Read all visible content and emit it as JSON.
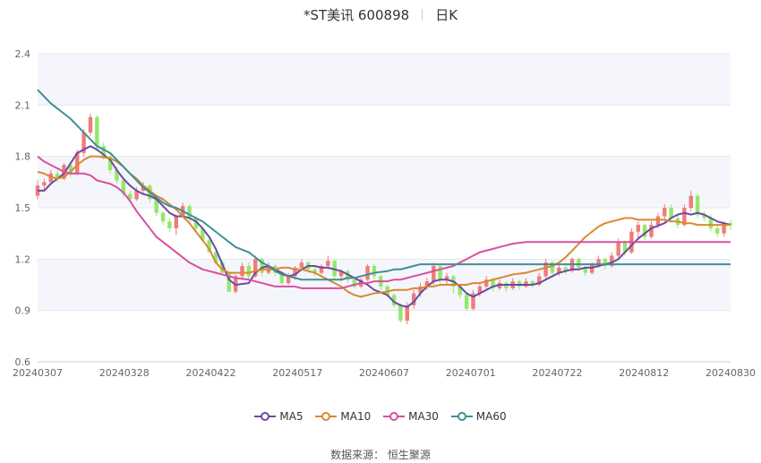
{
  "header": {
    "title": "*ST美讯 600898",
    "period": "日K"
  },
  "source": "数据来源： 恒生聚源",
  "chart_data": {
    "type": "candlestick",
    "x_ticks": [
      "20240307",
      "20240328",
      "20240422",
      "20240517",
      "20240607",
      "20240701",
      "20240722",
      "20240812",
      "20240830"
    ],
    "y_ticks": [
      "2.4",
      "2.1",
      "1.8",
      "1.5",
      "1.2",
      "0.9",
      "0.6"
    ],
    "ylim": [
      0.6,
      2.4
    ],
    "colors": {
      "up": "#f07b7b",
      "down": "#93e86b",
      "grid": "#e8e8e8",
      "band": "#f5f6fb"
    },
    "legend_placement": "bottom-center",
    "candles": [
      [
        1.57,
        1.63,
        1.66,
        1.55
      ],
      [
        1.63,
        1.65,
        1.67,
        1.6
      ],
      [
        1.65,
        1.7,
        1.72,
        1.64
      ],
      [
        1.7,
        1.67,
        1.72,
        1.65
      ],
      [
        1.67,
        1.75,
        1.76,
        1.66
      ],
      [
        1.75,
        1.7,
        1.76,
        1.68
      ],
      [
        1.7,
        1.82,
        1.84,
        1.69
      ],
      [
        1.82,
        1.94,
        1.96,
        1.8
      ],
      [
        1.94,
        2.03,
        2.05,
        1.92
      ],
      [
        2.03,
        1.86,
        2.04,
        1.83
      ],
      [
        1.86,
        1.8,
        1.88,
        1.78
      ],
      [
        1.8,
        1.72,
        1.82,
        1.7
      ],
      [
        1.72,
        1.66,
        1.74,
        1.64
      ],
      [
        1.66,
        1.58,
        1.68,
        1.56
      ],
      [
        1.58,
        1.55,
        1.6,
        1.53
      ],
      [
        1.55,
        1.6,
        1.62,
        1.54
      ],
      [
        1.6,
        1.63,
        1.65,
        1.58
      ],
      [
        1.63,
        1.55,
        1.64,
        1.53
      ],
      [
        1.55,
        1.47,
        1.56,
        1.45
      ],
      [
        1.47,
        1.42,
        1.48,
        1.4
      ],
      [
        1.42,
        1.38,
        1.44,
        1.36
      ],
      [
        1.38,
        1.45,
        1.46,
        1.34
      ],
      [
        1.45,
        1.51,
        1.53,
        1.44
      ],
      [
        1.51,
        1.44,
        1.52,
        1.42
      ],
      [
        1.44,
        1.38,
        1.45,
        1.36
      ],
      [
        1.38,
        1.31,
        1.39,
        1.3
      ],
      [
        1.31,
        1.24,
        1.32,
        1.24
      ],
      [
        1.24,
        1.18,
        1.25,
        1.18
      ],
      [
        1.18,
        1.12,
        1.19,
        1.12
      ],
      [
        1.12,
        1.01,
        1.13,
        1.01
      ],
      [
        1.01,
        1.1,
        1.11,
        1.0
      ],
      [
        1.1,
        1.16,
        1.18,
        1.08
      ],
      [
        1.16,
        1.1,
        1.18,
        1.08
      ],
      [
        1.1,
        1.2,
        1.22,
        1.09
      ],
      [
        1.2,
        1.12,
        1.21,
        1.1
      ],
      [
        1.12,
        1.16,
        1.18,
        1.11
      ],
      [
        1.16,
        1.12,
        1.17,
        1.1
      ],
      [
        1.12,
        1.06,
        1.13,
        1.05
      ],
      [
        1.06,
        1.1,
        1.12,
        1.05
      ],
      [
        1.1,
        1.15,
        1.16,
        1.08
      ],
      [
        1.15,
        1.18,
        1.2,
        1.13
      ],
      [
        1.18,
        1.14,
        1.19,
        1.12
      ],
      [
        1.14,
        1.12,
        1.16,
        1.1
      ],
      [
        1.12,
        1.16,
        1.17,
        1.11
      ],
      [
        1.16,
        1.19,
        1.22,
        1.14
      ],
      [
        1.19,
        1.1,
        1.2,
        1.08
      ],
      [
        1.1,
        1.13,
        1.14,
        1.07
      ],
      [
        1.13,
        1.08,
        1.14,
        1.06
      ],
      [
        1.08,
        1.04,
        1.09,
        1.03
      ],
      [
        1.04,
        1.08,
        1.09,
        1.03
      ],
      [
        1.08,
        1.16,
        1.17,
        1.07
      ],
      [
        1.16,
        1.1,
        1.17,
        1.08
      ],
      [
        1.1,
        1.04,
        1.11,
        1.02
      ],
      [
        1.04,
        0.99,
        1.05,
        0.98
      ],
      [
        0.99,
        0.93,
        1.0,
        0.92
      ],
      [
        0.93,
        0.84,
        0.94,
        0.83
      ],
      [
        0.84,
        0.93,
        0.95,
        0.82
      ],
      [
        0.93,
        1.0,
        1.02,
        0.91
      ],
      [
        1.0,
        1.04,
        1.06,
        0.98
      ],
      [
        1.04,
        1.07,
        1.09,
        1.02
      ],
      [
        1.07,
        1.16,
        1.18,
        1.05
      ],
      [
        1.16,
        1.08,
        1.17,
        1.06
      ],
      [
        1.08,
        1.1,
        1.12,
        1.05
      ],
      [
        1.1,
        1.04,
        1.11,
        1.0
      ],
      [
        1.04,
        0.99,
        1.05,
        0.97
      ],
      [
        0.99,
        0.91,
        1.0,
        0.9
      ],
      [
        0.91,
        1.0,
        1.02,
        0.9
      ],
      [
        1.0,
        1.04,
        1.06,
        0.98
      ],
      [
        1.04,
        1.08,
        1.1,
        1.02
      ],
      [
        1.08,
        1.03,
        1.09,
        1.01
      ],
      [
        1.03,
        1.06,
        1.08,
        1.02
      ],
      [
        1.06,
        1.03,
        1.07,
        1.01
      ],
      [
        1.03,
        1.07,
        1.09,
        1.02
      ],
      [
        1.07,
        1.04,
        1.08,
        1.02
      ],
      [
        1.04,
        1.07,
        1.09,
        1.03
      ],
      [
        1.07,
        1.05,
        1.08,
        1.03
      ],
      [
        1.05,
        1.1,
        1.12,
        1.04
      ],
      [
        1.1,
        1.18,
        1.2,
        1.08
      ],
      [
        1.18,
        1.12,
        1.19,
        1.1
      ],
      [
        1.12,
        1.15,
        1.17,
        1.1
      ],
      [
        1.15,
        1.13,
        1.17,
        1.11
      ],
      [
        1.13,
        1.2,
        1.21,
        1.12
      ],
      [
        1.2,
        1.15,
        1.21,
        1.13
      ],
      [
        1.15,
        1.12,
        1.16,
        1.1
      ],
      [
        1.12,
        1.17,
        1.18,
        1.11
      ],
      [
        1.17,
        1.2,
        1.22,
        1.15
      ],
      [
        1.2,
        1.16,
        1.21,
        1.14
      ],
      [
        1.16,
        1.22,
        1.24,
        1.15
      ],
      [
        1.22,
        1.3,
        1.32,
        1.2
      ],
      [
        1.3,
        1.24,
        1.31,
        1.22
      ],
      [
        1.24,
        1.36,
        1.38,
        1.23
      ],
      [
        1.36,
        1.4,
        1.42,
        1.32
      ],
      [
        1.4,
        1.33,
        1.41,
        1.31
      ],
      [
        1.33,
        1.4,
        1.42,
        1.32
      ],
      [
        1.4,
        1.45,
        1.47,
        1.38
      ],
      [
        1.45,
        1.5,
        1.52,
        1.42
      ],
      [
        1.5,
        1.44,
        1.52,
        1.42
      ],
      [
        1.44,
        1.4,
        1.46,
        1.38
      ],
      [
        1.4,
        1.5,
        1.52,
        1.39
      ],
      [
        1.5,
        1.57,
        1.6,
        1.48
      ],
      [
        1.57,
        1.46,
        1.58,
        1.44
      ],
      [
        1.46,
        1.44,
        1.48,
        1.42
      ],
      [
        1.44,
        1.38,
        1.46,
        1.36
      ],
      [
        1.38,
        1.35,
        1.4,
        1.33
      ],
      [
        1.35,
        1.41,
        1.42,
        1.33
      ],
      [
        1.41,
        1.4,
        1.43,
        1.37
      ]
    ],
    "series": [
      {
        "name": "MA5",
        "color": "#6a4ba0",
        "values": [
          1.6,
          1.6,
          1.64,
          1.67,
          1.7,
          1.76,
          1.82,
          1.84,
          1.86,
          1.84,
          1.78,
          1.72,
          1.67,
          1.63,
          1.6,
          1.58,
          1.57,
          1.55,
          1.51,
          1.47,
          1.45,
          1.45,
          1.44,
          1.42,
          1.38,
          1.33,
          1.26,
          1.17,
          1.08,
          1.05,
          1.06,
          1.12,
          1.15,
          1.16,
          1.14,
          1.12,
          1.1,
          1.11,
          1.14,
          1.16,
          1.16,
          1.15,
          1.15,
          1.14,
          1.13,
          1.11,
          1.09,
          1.07,
          1.05,
          1.02,
          0.99,
          0.95,
          0.93,
          0.92,
          0.95,
          1.0,
          1.04,
          1.07,
          1.08,
          1.08,
          1.07,
          1.04,
          1.0,
          0.98,
          1.0,
          1.02,
          1.04,
          1.05,
          1.05,
          1.05,
          1.05,
          1.05,
          1.06,
          1.08,
          1.1,
          1.12,
          1.13,
          1.14,
          1.14,
          1.15,
          1.15,
          1.16,
          1.17,
          1.18,
          1.2,
          1.24,
          1.28,
          1.32,
          1.35,
          1.38,
          1.41,
          1.44,
          1.46,
          1.47,
          1.46,
          1.47,
          1.46,
          1.44,
          1.42,
          1.41,
          1.4
        ]
      },
      {
        "name": "MA10",
        "color": "#d9892e",
        "values": [
          1.71,
          1.7,
          1.68,
          1.67,
          1.68,
          1.71,
          1.75,
          1.78,
          1.8,
          1.8,
          1.79,
          1.77,
          1.74,
          1.7,
          1.67,
          1.63,
          1.6,
          1.57,
          1.55,
          1.52,
          1.49,
          1.45,
          1.41,
          1.36,
          1.31,
          1.26,
          1.18,
          1.14,
          1.12,
          1.12,
          1.12,
          1.13,
          1.14,
          1.14,
          1.14,
          1.15,
          1.15,
          1.14,
          1.14,
          1.13,
          1.12,
          1.1,
          1.08,
          1.06,
          1.04,
          1.01,
          0.99,
          0.98,
          0.99,
          1.0,
          1.01,
          1.02,
          1.02,
          1.02,
          1.03,
          1.03,
          1.04,
          1.04,
          1.05,
          1.05,
          1.05,
          1.05,
          1.05,
          1.06,
          1.06,
          1.07,
          1.08,
          1.09,
          1.1,
          1.11,
          1.12,
          1.13,
          1.14,
          1.15,
          1.16,
          1.18,
          1.21,
          1.25,
          1.29,
          1.33,
          1.36,
          1.39,
          1.41,
          1.42,
          1.43,
          1.44,
          1.44,
          1.43,
          1.43,
          1.43,
          1.43,
          1.42,
          1.42,
          1.41,
          1.41,
          1.4,
          1.4,
          1.4,
          1.4,
          1.4,
          1.4
        ]
      },
      {
        "name": "MA30",
        "color": "#d94fa0",
        "values": [
          1.8,
          1.77,
          1.75,
          1.73,
          1.71,
          1.7,
          1.7,
          1.7,
          1.69,
          1.66,
          1.64,
          1.62,
          1.59,
          1.54,
          1.48,
          1.43,
          1.38,
          1.33,
          1.3,
          1.27,
          1.24,
          1.21,
          1.18,
          1.16,
          1.14,
          1.13,
          1.12,
          1.11,
          1.1,
          1.09,
          1.08,
          1.07,
          1.06,
          1.05,
          1.04,
          1.04,
          1.04,
          1.04,
          1.03,
          1.03,
          1.03,
          1.03,
          1.03,
          1.03,
          1.03,
          1.04,
          1.05,
          1.06,
          1.06,
          1.07,
          1.07,
          1.08,
          1.08,
          1.09,
          1.1,
          1.11,
          1.12,
          1.13,
          1.14,
          1.15,
          1.16,
          1.18,
          1.2,
          1.22,
          1.24,
          1.25,
          1.26,
          1.27,
          1.28,
          1.29,
          1.3,
          1.3,
          1.3,
          1.3,
          1.3,
          1.3,
          1.3,
          1.3,
          1.3,
          1.3,
          1.3,
          1.3,
          1.3,
          1.3,
          1.3,
          1.3,
          1.3,
          1.3,
          1.3,
          1.3,
          1.3,
          1.3,
          1.3,
          1.3,
          1.3,
          1.3,
          1.3,
          1.3,
          1.3,
          1.3,
          1.3
        ]
      },
      {
        "name": "MA60",
        "color": "#3f8f92",
        "values": [
          2.19,
          2.15,
          2.11,
          2.08,
          2.05,
          2.02,
          1.98,
          1.94,
          1.9,
          1.86,
          1.82,
          1.78,
          1.74,
          1.7,
          1.66,
          1.62,
          1.59,
          1.56,
          1.53,
          1.51,
          1.5,
          1.48,
          1.46,
          1.44,
          1.42,
          1.39,
          1.36,
          1.33,
          1.3,
          1.27,
          1.24,
          1.21,
          1.18,
          1.16,
          1.13,
          1.11,
          1.1,
          1.09,
          1.08,
          1.08,
          1.08,
          1.08,
          1.08,
          1.08,
          1.08,
          1.09,
          1.09,
          1.1,
          1.11,
          1.12,
          1.13,
          1.14,
          1.14,
          1.15,
          1.16,
          1.17,
          1.17,
          1.17,
          1.17,
          1.17,
          1.17,
          1.17,
          1.17,
          1.17,
          1.17,
          1.17,
          1.17,
          1.17,
          1.17,
          1.17,
          1.17,
          1.17,
          1.17,
          1.17,
          1.17,
          1.17,
          1.17,
          1.17,
          1.17,
          1.17,
          1.17,
          1.17,
          1.17,
          1.17,
          1.17,
          1.17,
          1.17,
          1.17,
          1.17,
          1.17,
          1.17,
          1.17,
          1.17,
          1.17,
          1.17,
          1.17,
          1.17,
          1.17,
          1.17,
          1.17,
          1.17
        ]
      }
    ]
  }
}
